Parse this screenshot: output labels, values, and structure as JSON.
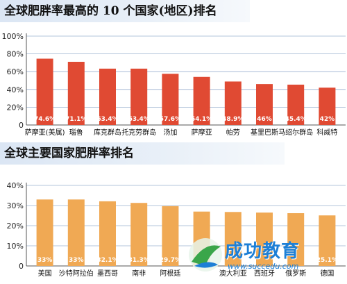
{
  "charts_meta": {
    "top_title": "全球肥胖率最高的 10 个国家(地区)排名",
    "bottom_title": "全球主要国家肥胖率排名"
  },
  "watermark": {
    "text": "成功教育",
    "url": "www.succedu.com"
  },
  "chart_data": [
    {
      "type": "bar",
      "title": "全球肥胖率最高的 10 个国家(地区)排名",
      "categories": [
        "萨摩亚(美属)",
        "瑙鲁",
        "库克群岛",
        "托克劳群岛",
        "汤加",
        "萨摩亚",
        "帕劳",
        "基里巴斯",
        "马绍尔群岛",
        "科威特"
      ],
      "values": [
        74.6,
        71.1,
        63.4,
        63.4,
        57.6,
        54.1,
        48.9,
        46,
        45.4,
        42
      ],
      "data_labels": [
        "74.6%",
        "71.1%",
        "63.4%",
        "63.4%",
        "57.6%",
        "54.1%",
        "48.9%",
        "46%",
        "45.4%",
        "42%"
      ],
      "ylim": [
        0,
        100
      ],
      "yticks": [
        "0",
        "20%",
        "40%",
        "60%",
        "80%",
        "100%"
      ],
      "bar_color": "#e04a33",
      "grid": true
    },
    {
      "type": "bar",
      "title": "全球主要国家肥胖率排名",
      "categories": [
        "美国",
        "沙特阿拉伯",
        "墨西哥",
        "南非",
        "阿根廷",
        "",
        "澳大利亚",
        "西班牙",
        "俄罗斯",
        "德国"
      ],
      "values": [
        33,
        33,
        32.1,
        31.3,
        29.7,
        27,
        26.8,
        26.5,
        26.2,
        25.1
      ],
      "data_labels": [
        "33%",
        "33%",
        "32.1%",
        "31.3%",
        "29.7%",
        "",
        "",
        "",
        "",
        "25.1%"
      ],
      "ylim": [
        0,
        40
      ],
      "yticks": [
        "0",
        "10%",
        "20%",
        "30%",
        "40%"
      ],
      "bar_color": "#f0a954",
      "grid": true
    }
  ]
}
